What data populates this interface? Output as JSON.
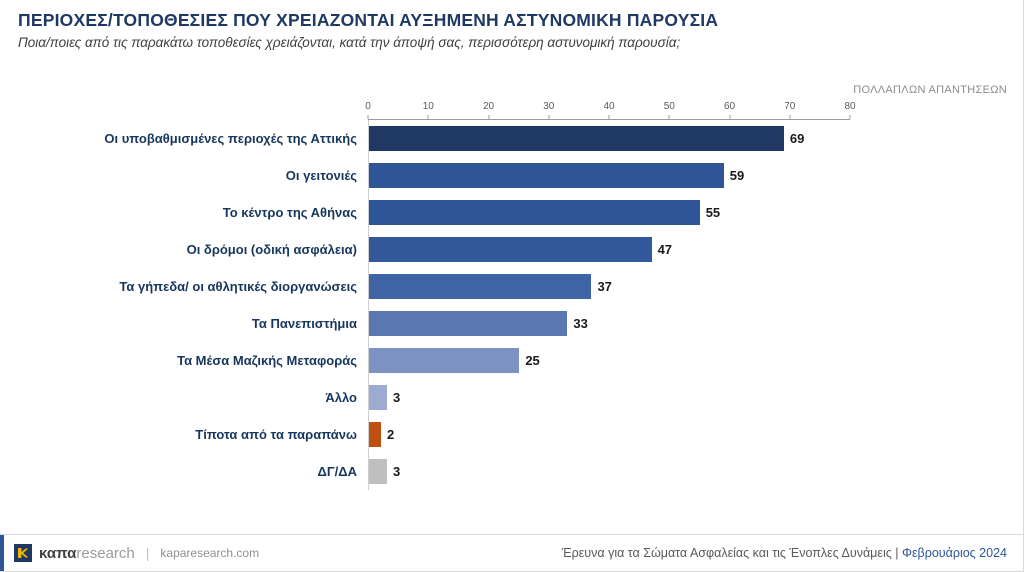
{
  "header": {
    "title": "ΠΕΡΙΟΧΕΣ/ΤΟΠΟΘΕΣΙΕΣ ΠΟΥ ΧΡΕΙΑΖΟΝΤΑΙ ΑΥΞΗΜΕΝΗ ΑΣΤΥΝΟΜΙΚΗ ΠΑΡΟΥΣΙΑ",
    "subtitle": "Ποια/ποιες από τις παρακάτω τοποθεσίες χρειάζονται, κατά την άποψή σας, περισσότερη αστυνομική παρουσία;",
    "note": "ΠΟΛΛΑΠΛΩΝ ΑΠΑΝΤΗΣΕΩΝ"
  },
  "chart_data": {
    "type": "bar",
    "orientation": "horizontal",
    "title": "ΠΕΡΙΟΧΕΣ/ΤΟΠΟΘΕΣΙΕΣ ΠΟΥ ΧΡΕΙΑΖΟΝΤΑΙ ΑΥΞΗΜΕΝΗ ΑΣΤΥΝΟΜΙΚΗ ΠΑΡΟΥΣΙΑ",
    "categories": [
      "Οι υποβαθμισμένες περιοχές της Αττικής",
      "Οι γειτονιές",
      "Το κέντρο της Αθήνας",
      "Οι δρόμοι (οδική ασφάλεια)",
      "Τα γήπεδα/ οι αθλητικές διοργανώσεις",
      "Τα Πανεπιστήμια",
      "Τα Μέσα Μαζικής Μεταφοράς",
      "Άλλο",
      "Τίποτα από τα παραπάνω",
      "ΔΓ/ΔΑ"
    ],
    "values": [
      69,
      59,
      55,
      47,
      37,
      33,
      25,
      3,
      2,
      3
    ],
    "bar_colors": [
      "#1f3864",
      "#2e5597",
      "#2e5597",
      "#33599b",
      "#3f64a6",
      "#5a77b2",
      "#7b92c3",
      "#9dabd2",
      "#c0500f",
      "#bfbfbf"
    ],
    "xlim": [
      0,
      80
    ],
    "axis_ticks": [
      0,
      10,
      20,
      30,
      40,
      50,
      60,
      70,
      80
    ],
    "axis_position": "top",
    "value_labels": true,
    "grid": false,
    "legend": false
  },
  "footer": {
    "brand_bold": "καπα",
    "brand_light": "research",
    "divider": "|",
    "website": "kaparesearch.com",
    "source": "Έρευνα για τα Σώματα Ασφαλείας και τις Ένοπλες Δυνάμεις",
    "source_divider": "|",
    "date": "Φεβρουάριος 2024"
  },
  "colors": {
    "title": "#1f3864",
    "accent_blue": "#2e5597",
    "orange": "#c0500f",
    "gray_bar": "#bfbfbf"
  }
}
